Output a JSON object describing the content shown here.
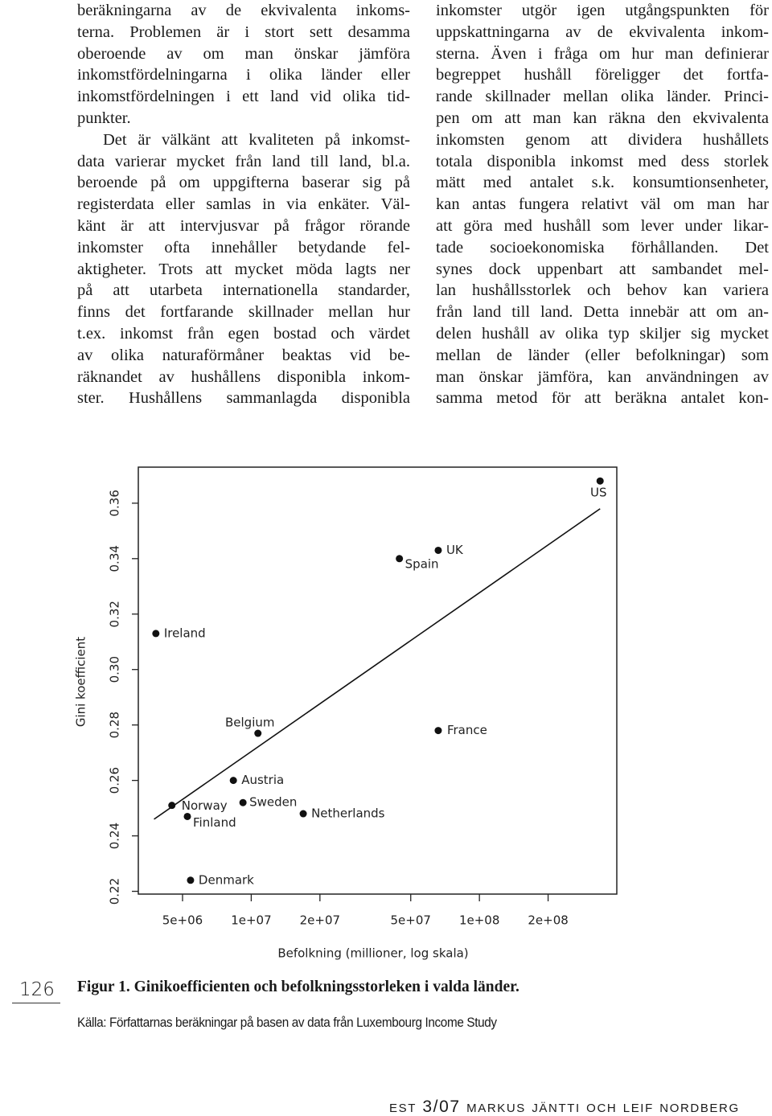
{
  "text": {
    "left_column": [
      "beräkningarna av de ekvivalenta inkoms-",
      "terna. Problemen är i stort sett desamma",
      "oberoende av om man önskar jämföra",
      "inkomstfördelningarna i olika länder eller",
      "inkomstfördelningen i ett land vid olika tid-",
      "punkter.",
      "Det är välkänt att kvaliteten på inkomst-",
      "data varierar mycket från land till land, bl.a.",
      "beroende på om uppgifterna baserar sig på",
      "registerdata eller samlas in via enkäter. Väl-",
      "känt är att intervjusvar på frågor rörande",
      "inkomster ofta innehåller betydande fel-",
      "aktigheter. Trots att mycket möda lagts ner",
      "på att utarbeta internationella standarder,",
      "finns det fortfarande skillnader mellan hur",
      "t.ex. inkomst från egen bostad och värdet",
      "av olika naturaförmåner beaktas vid be-",
      "räknandet av hushållens disponibla inkom-",
      "ster. Hushållens sammanlagda disponibla"
    ],
    "right_column": [
      "inkomster utgör igen utgångspunkten för",
      "uppskattningarna av de ekvivalenta inkom-",
      "sterna. Även i fråga om hur man definierar",
      "begreppet hushåll föreligger det fortfa-",
      "rande skillnader mellan olika länder. Princi-",
      "pen om att man kan räkna den ekvivalenta",
      "inkomsten genom att dividera hushållets",
      "totala disponibla inkomst med dess storlek",
      "mätt med antalet s.k. konsumtionsenheter,",
      "kan antas fungera relativt väl om man har",
      "att göra med hushåll som lever under likar-",
      "tade socioekonomiska förhållanden. Det",
      "synes dock uppenbart att sambandet mel-",
      "lan hushållsstorlek och behov kan variera",
      "från land till land. Detta innebär att om an-",
      "delen hushåll av olika typ skiljer sig mycket",
      "mellan de länder (eller befolkningar) som",
      "man önskar jämföra, kan användningen av",
      "samma metod för att beräkna antalet kon-"
    ]
  },
  "chart_data": {
    "type": "scatter",
    "y_label": "Gini koefficient",
    "x_label": "Befolkning (millioner, log skala)",
    "labels": [
      "US",
      "UK",
      "Spain",
      "Ireland",
      "Belgium",
      "France",
      "Austria",
      "Norway",
      "Sweden",
      "Netherlands",
      "Finland",
      "Denmark"
    ],
    "x": [
      338000000,
      66000000,
      44600000,
      3820000,
      10700000,
      66000000,
      8350000,
      4490000,
      9200000,
      16900000,
      5250000,
      5420000
    ],
    "values": [
      0.368,
      0.343,
      0.34,
      0.313,
      0.277,
      0.278,
      0.26,
      0.251,
      0.252,
      0.248,
      0.247,
      0.224
    ],
    "fit": {
      "x": [
        3750000,
        338000000
      ],
      "values": [
        0.246,
        0.358
      ]
    },
    "color": "#111111",
    "log_x": true,
    "xlim": [
      3200000,
      400000000
    ],
    "ylim": [
      0.219,
      0.373
    ],
    "xticks": [
      {
        "value": 5000000,
        "label": "5e+06"
      },
      {
        "value": 10000000,
        "label": "1e+07"
      },
      {
        "value": 20000000,
        "label": "2e+07"
      },
      {
        "value": 50000000,
        "label": "5e+07"
      },
      {
        "value": 100000000,
        "label": "1e+08"
      },
      {
        "value": 200000000,
        "label": "2e+08"
      }
    ],
    "yticks": [
      0.22,
      0.24,
      0.26,
      0.28,
      {
        "value": 0.3,
        "label": "0.30"
      },
      0.32,
      0.34,
      0.36
    ]
  },
  "page_number": "126",
  "caption": "Figur 1. Ginikoefficienten och befolkningsstorleken i valda länder.",
  "source": "Källa: Författarnas beräkningar på basen av data från Luxembourg Income Study",
  "footer": "est 3/07 markus jäntti och leif nordberg"
}
